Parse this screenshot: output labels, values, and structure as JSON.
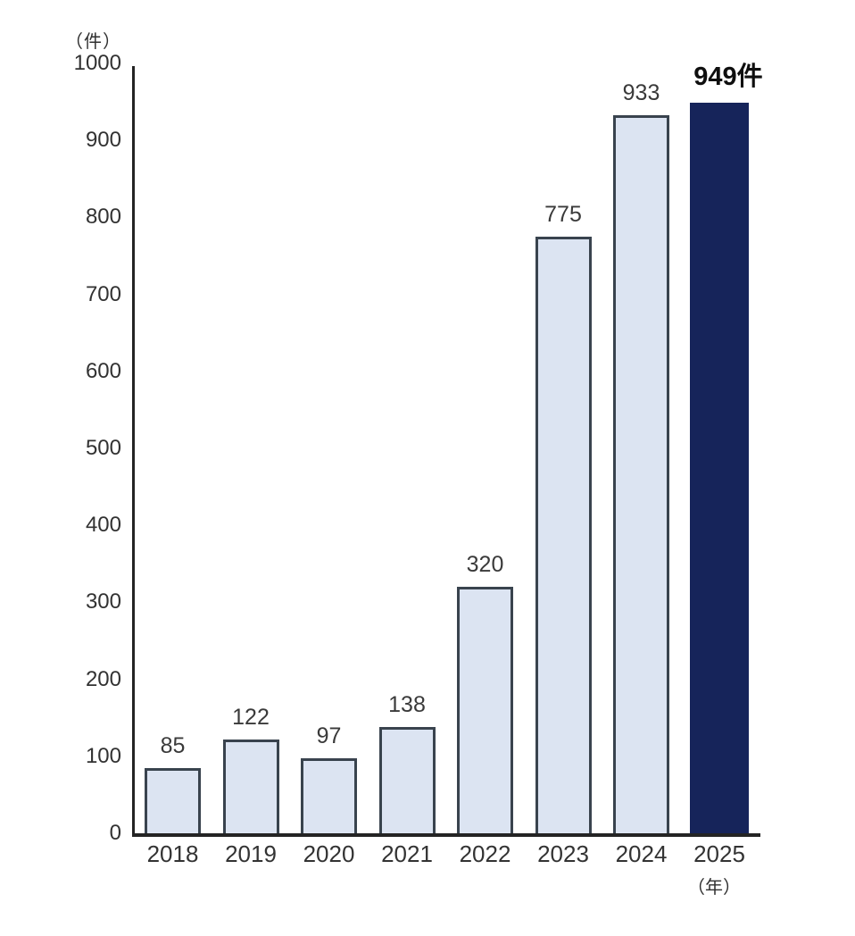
{
  "chart_data": {
    "type": "bar",
    "title": "",
    "categories": [
      "2018",
      "2019",
      "2020",
      "2021",
      "2022",
      "2023",
      "2024",
      "2025"
    ],
    "values": [
      85,
      122,
      97,
      138,
      320,
      775,
      933,
      949
    ],
    "bar_labels": [
      "85",
      "122",
      "97",
      "138",
      "320",
      "775",
      "933",
      "949件"
    ],
    "highlight_index": 7,
    "xlabel": "",
    "ylabel": "",
    "ylim": [
      0,
      1000
    ],
    "y_axis": {
      "unit_label": "（件）",
      "ticks": [
        "0",
        "100",
        "200",
        "300",
        "400",
        "500",
        "600",
        "700",
        "800",
        "900",
        "1000"
      ],
      "tick_values": [
        0,
        100,
        200,
        300,
        400,
        500,
        600,
        700,
        800,
        900,
        1000
      ]
    },
    "x_axis": {
      "unit_label": "（年）"
    },
    "grid": false,
    "legend": false,
    "colors": {
      "bar_fill": "#dce4f2",
      "bar_border": "#39434e",
      "highlight_bar_fill": "#16245a",
      "axis": "#242424",
      "label_text": "#3a3a3a",
      "highlight_label_text": "#0f0f0f"
    }
  }
}
